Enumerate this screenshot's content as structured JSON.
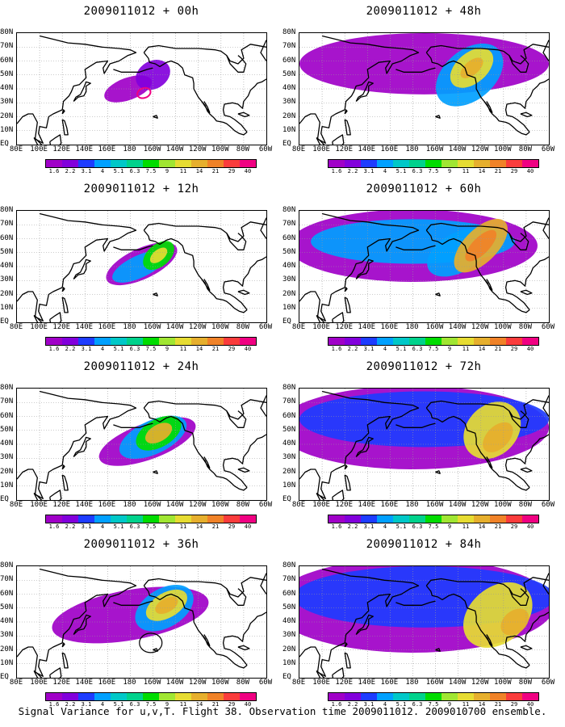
{
  "caption": "Signal Variance for u,v,T. Flight 38. Observation time 2009011012. 2009010700 ensemble.",
  "lat_labels": [
    "80N",
    "70N",
    "60N",
    "50N",
    "40N",
    "30N",
    "20N",
    "10N",
    "EQ"
  ],
  "lon_labels": [
    "80E",
    "100E",
    "120E",
    "140E",
    "160E",
    "180",
    "160W",
    "140W",
    "120W",
    "100W",
    "80W",
    "60W"
  ],
  "colorbar": {
    "levels": [
      "1.6",
      "2.2",
      "3.1",
      "4",
      "5.1",
      "6.3",
      "7.5",
      "9",
      "11",
      "14",
      "21",
      "29",
      "40"
    ],
    "colors": [
      "#a000c8",
      "#8200dc",
      "#1e3cff",
      "#00a0ff",
      "#00c8c8",
      "#00d28c",
      "#00dc00",
      "#a0e632",
      "#e6dc32",
      "#e6af2d",
      "#f08228",
      "#fa3c3c",
      "#f00082"
    ]
  },
  "chart_data": [
    {
      "type": "heatmap",
      "title": "2009011012 + 00h",
      "lead_hours": 0,
      "xlim": [
        "80E",
        "60W"
      ],
      "ylim": [
        "EQ",
        "80N"
      ],
      "blobs": [
        {
          "lon": 178,
          "lat": 40,
          "level": "1.6"
        },
        {
          "lon": 200,
          "lat": 50,
          "level": "2.2"
        },
        {
          "lon": 192,
          "lat": 37,
          "level": "40"
        }
      ]
    },
    {
      "type": "heatmap",
      "title": "2009011012 + 12h",
      "lead_hours": 12,
      "xlim": [
        "80E",
        "60W"
      ],
      "ylim": [
        "EQ",
        "80N"
      ],
      "blobs": [
        {
          "lon": 190,
          "lat": 42,
          "level": "4"
        },
        {
          "lon": 205,
          "lat": 48,
          "level": "9"
        },
        {
          "lon": 205,
          "lat": 48,
          "level": "11"
        }
      ]
    },
    {
      "type": "heatmap",
      "title": "2009011012 + 24h",
      "lead_hours": 24,
      "xlim": [
        "80E",
        "60W"
      ],
      "ylim": [
        "EQ",
        "80N"
      ],
      "blobs": [
        {
          "lon": 200,
          "lat": 45,
          "level": "4"
        },
        {
          "lon": 205,
          "lat": 48,
          "level": "11"
        },
        {
          "lon": 205,
          "lat": 48,
          "level": "14"
        }
      ]
    },
    {
      "type": "heatmap",
      "title": "2009011012 + 36h",
      "lead_hours": 36,
      "xlim": [
        "80E",
        "60W"
      ],
      "ylim": [
        "EQ",
        "80N"
      ],
      "blobs": [
        {
          "lon": 210,
          "lat": 50,
          "level": "4"
        },
        {
          "lon": 212,
          "lat": 52,
          "level": "11"
        },
        {
          "lon": 212,
          "lat": 52,
          "level": "14"
        }
      ]
    },
    {
      "type": "heatmap",
      "title": "2009011012 + 48h",
      "lead_hours": 48,
      "xlim": [
        "80E",
        "60W"
      ],
      "ylim": [
        "EQ",
        "80N"
      ],
      "blobs": [
        {
          "lon": 230,
          "lat": 50,
          "level": "4"
        },
        {
          "lon": 232,
          "lat": 55,
          "level": "11"
        },
        {
          "lon": 232,
          "lat": 55,
          "level": "14"
        }
      ]
    },
    {
      "type": "heatmap",
      "title": "2009011012 + 60h",
      "lead_hours": 60,
      "xlim": [
        "80E",
        "60W"
      ],
      "ylim": [
        "EQ",
        "80N"
      ],
      "blobs": [
        {
          "lon": 220,
          "lat": 50,
          "level": "4"
        },
        {
          "lon": 240,
          "lat": 55,
          "level": "14"
        },
        {
          "lon": 240,
          "lat": 55,
          "level": "21"
        }
      ]
    },
    {
      "type": "heatmap",
      "title": "2009011012 + 72h",
      "lead_hours": 72,
      "xlim": [
        "80E",
        "60W"
      ],
      "ylim": [
        "EQ",
        "80N"
      ],
      "blobs": [
        {
          "lon": 200,
          "lat": 50,
          "level": "3.1"
        },
        {
          "lon": 250,
          "lat": 50,
          "level": "11"
        },
        {
          "lon": 255,
          "lat": 45,
          "level": "14"
        }
      ]
    },
    {
      "type": "heatmap",
      "title": "2009011012 + 84h",
      "lead_hours": 84,
      "xlim": [
        "80E",
        "60W"
      ],
      "ylim": [
        "EQ",
        "80N"
      ],
      "blobs": [
        {
          "lon": 200,
          "lat": 50,
          "level": "3.1"
        },
        {
          "lon": 255,
          "lat": 45,
          "level": "11"
        },
        {
          "lon": 270,
          "lat": 40,
          "level": "14"
        }
      ]
    }
  ]
}
